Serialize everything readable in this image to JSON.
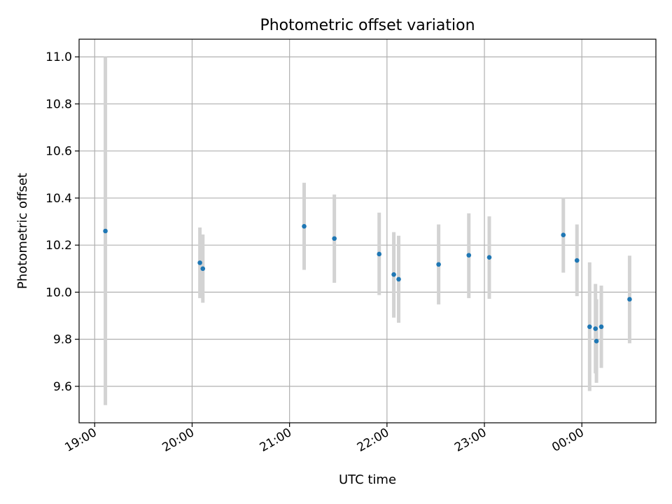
{
  "chart_data": {
    "type": "scatter",
    "title": "Photometric offset variation",
    "xlabel": "UTC time",
    "ylabel": "Photometric offset",
    "x_ticks": [
      {
        "value": 19.0,
        "label": "19:00"
      },
      {
        "value": 20.0,
        "label": "20:00"
      },
      {
        "value": 21.0,
        "label": "21:00"
      },
      {
        "value": 22.0,
        "label": "22:00"
      },
      {
        "value": 23.0,
        "label": "23:00"
      },
      {
        "value": 24.0,
        "label": "00:00"
      }
    ],
    "y_ticks": [
      {
        "value": 9.6,
        "label": "9.6"
      },
      {
        "value": 9.8,
        "label": "9.8"
      },
      {
        "value": 10.0,
        "label": "10.0"
      },
      {
        "value": 10.2,
        "label": "10.2"
      },
      {
        "value": 10.4,
        "label": "10.4"
      },
      {
        "value": 10.6,
        "label": "10.6"
      },
      {
        "value": 10.8,
        "label": "10.8"
      },
      {
        "value": 11.0,
        "label": "11.0"
      }
    ],
    "xlim": [
      18.84,
      24.76
    ],
    "ylim": [
      9.445,
      11.075
    ],
    "grid": true,
    "x_tick_rotation": "30 degrees",
    "colors": {
      "point": "#1f77b4",
      "errorbar": "#d3d3d3",
      "grid": "#b0b0b0"
    },
    "points": [
      {
        "x": 19.11,
        "y": 10.26,
        "low": 9.52,
        "high": 11.0
      },
      {
        "x": 20.08,
        "y": 10.125,
        "low": 9.975,
        "high": 10.275
      },
      {
        "x": 20.11,
        "y": 10.1,
        "low": 9.955,
        "high": 10.245
      },
      {
        "x": 21.15,
        "y": 10.28,
        "low": 10.095,
        "high": 10.465
      },
      {
        "x": 21.46,
        "y": 10.228,
        "low": 10.04,
        "high": 10.415
      },
      {
        "x": 21.92,
        "y": 10.162,
        "low": 9.988,
        "high": 10.338
      },
      {
        "x": 22.07,
        "y": 10.075,
        "low": 9.892,
        "high": 10.255
      },
      {
        "x": 22.12,
        "y": 10.055,
        "low": 9.87,
        "high": 10.24
      },
      {
        "x": 22.53,
        "y": 10.118,
        "low": 9.948,
        "high": 10.288
      },
      {
        "x": 22.84,
        "y": 10.157,
        "low": 9.975,
        "high": 10.335
      },
      {
        "x": 23.05,
        "y": 10.148,
        "low": 9.972,
        "high": 10.322
      },
      {
        "x": 23.81,
        "y": 10.243,
        "low": 10.083,
        "high": 10.4
      },
      {
        "x": 23.95,
        "y": 10.135,
        "low": 9.983,
        "high": 10.288
      },
      {
        "x": 24.08,
        "y": 9.853,
        "low": 9.58,
        "high": 10.127
      },
      {
        "x": 24.14,
        "y": 9.845,
        "low": 9.655,
        "high": 10.035
      },
      {
        "x": 24.15,
        "y": 9.792,
        "low": 9.615,
        "high": 9.97
      },
      {
        "x": 24.2,
        "y": 9.853,
        "low": 9.678,
        "high": 10.028
      },
      {
        "x": 24.49,
        "y": 9.97,
        "low": 9.783,
        "high": 10.155
      }
    ]
  }
}
